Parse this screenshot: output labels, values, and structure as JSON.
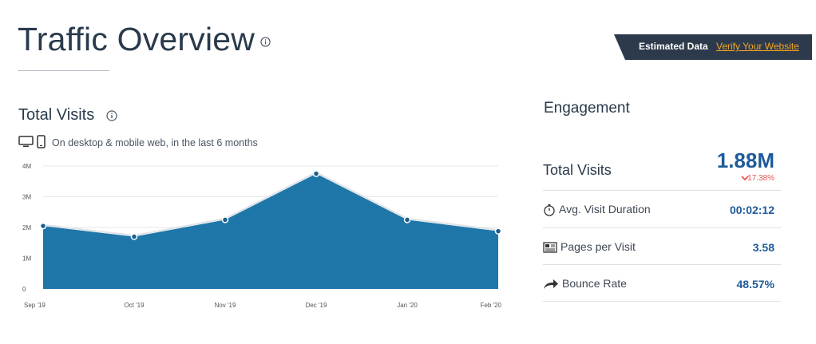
{
  "header": {
    "title": "Traffic Overview",
    "info_icon": "info-circle-icon",
    "banner_label": "Estimated Data",
    "banner_link": "Verify Your Website"
  },
  "total_visits_panel": {
    "title": "Total Visits",
    "info_icon": "info-circle-icon",
    "device_icons": [
      "desktop-icon",
      "mobile-icon"
    ],
    "subtitle": "On desktop & mobile web, in the last 6 months"
  },
  "chart_data": {
    "type": "area",
    "categories": [
      "Sep '19",
      "Oct '19",
      "Nov '19",
      "Dec '19",
      "Jan '20",
      "Feb '20"
    ],
    "values": [
      2.05,
      1.7,
      2.25,
      3.75,
      2.25,
      1.88
    ],
    "y_unit": "M",
    "yticks": [
      "0",
      "1M",
      "2M",
      "3M",
      "4M"
    ],
    "ylim": [
      0,
      4
    ],
    "grid": true,
    "color": "#1f77a9"
  },
  "engagement": {
    "title": "Engagement",
    "metrics": {
      "total_visits": {
        "label": "Total Visits",
        "value": "1.88M",
        "change": "17.38%",
        "change_direction": "down"
      },
      "duration": {
        "label": "Avg. Visit Duration",
        "value": "00:02:12",
        "icon": "stopwatch-icon"
      },
      "pages": {
        "label": "Pages per Visit",
        "value": "3.58",
        "icon": "page-icon"
      },
      "bounce": {
        "label": "Bounce Rate",
        "value": "48.57%",
        "icon": "bounce-arrow-icon"
      }
    }
  },
  "colors": {
    "accent": "#1e5a9b",
    "banner": "#2d3a4b",
    "link": "#f5a623",
    "negative": "#e5534b"
  }
}
